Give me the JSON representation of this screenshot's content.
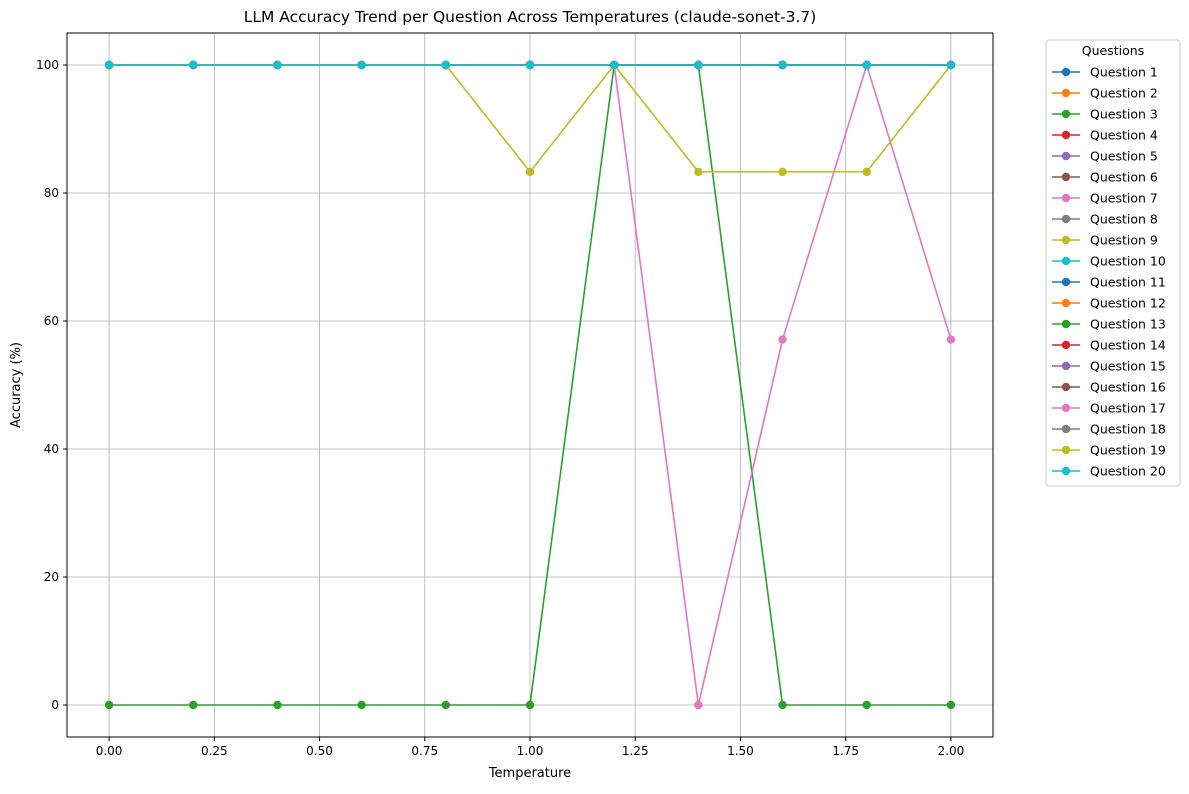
{
  "chart_data": {
    "type": "line",
    "title": "LLM Accuracy Trend per Question Across Temperatures (claude-sonet-3.7)",
    "xlabel": "Temperature",
    "ylabel": "Accuracy (%)",
    "xlim": [
      -0.1,
      2.1
    ],
    "ylim": [
      -5,
      105
    ],
    "x_ticks": [
      0.0,
      0.25,
      0.5,
      0.75,
      1.0,
      1.25,
      1.5,
      1.75,
      2.0
    ],
    "x_tick_labels": [
      "0.00",
      "0.25",
      "0.50",
      "0.75",
      "1.00",
      "1.25",
      "1.50",
      "1.75",
      "2.00"
    ],
    "y_ticks": [
      0,
      20,
      40,
      60,
      80,
      100
    ],
    "y_tick_labels": [
      "0",
      "20",
      "40",
      "60",
      "80",
      "100"
    ],
    "grid": true,
    "legend_title": "Questions",
    "legend_position": "outside-right",
    "x": [
      0.0,
      0.2,
      0.4,
      0.6,
      0.8,
      1.0,
      1.2,
      1.4,
      1.6,
      1.8,
      2.0
    ],
    "series": [
      {
        "name": "Question 1",
        "color": "#1f77b4",
        "values": [
          100,
          100,
          100,
          100,
          100,
          100,
          100,
          100,
          100,
          100,
          100
        ]
      },
      {
        "name": "Question 2",
        "color": "#ff7f0e",
        "values": [
          100,
          100,
          100,
          100,
          100,
          100,
          100,
          100,
          100,
          100,
          100
        ]
      },
      {
        "name": "Question 3",
        "color": "#2ca02c",
        "values": [
          100,
          100,
          100,
          100,
          100,
          100,
          100,
          100,
          100,
          100,
          100
        ]
      },
      {
        "name": "Question 4",
        "color": "#d62728",
        "values": [
          100,
          100,
          100,
          100,
          100,
          100,
          100,
          100,
          100,
          100,
          100
        ]
      },
      {
        "name": "Question 5",
        "color": "#9467bd",
        "values": [
          100,
          100,
          100,
          100,
          100,
          100,
          100,
          100,
          100,
          100,
          100
        ]
      },
      {
        "name": "Question 6",
        "color": "#8c564b",
        "values": [
          100,
          100,
          100,
          100,
          100,
          100,
          100,
          100,
          100,
          100,
          100
        ]
      },
      {
        "name": "Question 7",
        "color": "#e377c2",
        "values": [
          100,
          100,
          100,
          100,
          100,
          100,
          100,
          100,
          100,
          100,
          100
        ]
      },
      {
        "name": "Question 8",
        "color": "#7f7f7f",
        "values": [
          100,
          100,
          100,
          100,
          100,
          100,
          100,
          100,
          100,
          100,
          100
        ]
      },
      {
        "name": "Question 9",
        "color": "#bcbd22",
        "values": [
          100,
          100,
          100,
          100,
          100,
          100,
          100,
          100,
          100,
          100,
          100
        ]
      },
      {
        "name": "Question 10",
        "color": "#17becf",
        "values": [
          100,
          100,
          100,
          100,
          100,
          100,
          100,
          100,
          100,
          100,
          100
        ]
      },
      {
        "name": "Question 11",
        "color": "#1f77b4",
        "values": [
          100,
          100,
          100,
          100,
          100,
          100,
          100,
          100,
          100,
          100,
          100
        ]
      },
      {
        "name": "Question 12",
        "color": "#ff7f0e",
        "values": [
          100,
          100,
          100,
          100,
          100,
          100,
          100,
          100,
          100,
          100,
          100
        ]
      },
      {
        "name": "Question 13",
        "color": "#2ca02c",
        "values": [
          0,
          0,
          0,
          0,
          0,
          0,
          100,
          100,
          0,
          0,
          0
        ]
      },
      {
        "name": "Question 14",
        "color": "#d62728",
        "values": [
          100,
          100,
          100,
          100,
          100,
          100,
          100,
          100,
          100,
          100,
          100
        ]
      },
      {
        "name": "Question 15",
        "color": "#9467bd",
        "values": [
          100,
          100,
          100,
          100,
          100,
          100,
          100,
          100,
          100,
          100,
          100
        ]
      },
      {
        "name": "Question 16",
        "color": "#8c564b",
        "values": [
          100,
          100,
          100,
          100,
          100,
          100,
          100,
          100,
          100,
          100,
          100
        ]
      },
      {
        "name": "Question 17",
        "color": "#e377c2",
        "values": [
          100,
          100,
          100,
          100,
          100,
          100,
          100,
          0,
          57.1,
          100,
          57.1
        ]
      },
      {
        "name": "Question 18",
        "color": "#7f7f7f",
        "values": [
          100,
          100,
          100,
          100,
          100,
          100,
          100,
          100,
          100,
          100,
          100
        ]
      },
      {
        "name": "Question 19",
        "color": "#bcbd22",
        "values": [
          100,
          100,
          100,
          100,
          100,
          83.3,
          100,
          83.3,
          83.3,
          83.3,
          100
        ]
      },
      {
        "name": "Question 20",
        "color": "#17becf",
        "values": [
          100,
          100,
          100,
          100,
          100,
          100,
          100,
          100,
          100,
          100,
          100
        ]
      }
    ]
  }
}
